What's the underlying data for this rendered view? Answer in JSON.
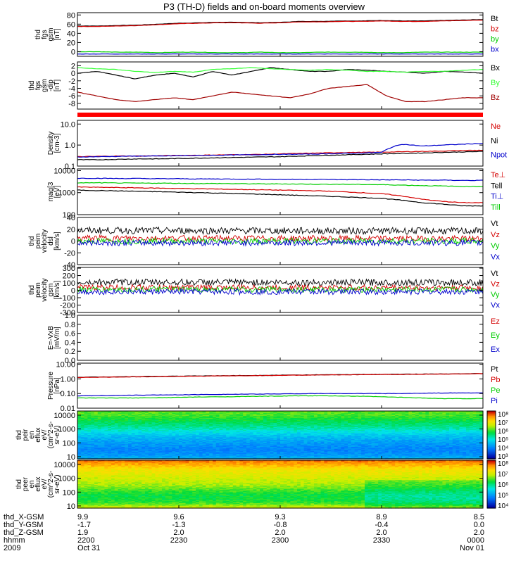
{
  "title": "P3 (TH-D) fields and on-board moments overview",
  "colors": {
    "black": "#000000",
    "red": "#d40000",
    "darkred": "#a00000",
    "green": "#00cc00",
    "blue": "#0000cc",
    "bright_green": "#33ff33"
  },
  "chart_data": [
    {
      "type": "line",
      "ylabel": [
        "thd",
        "fgs",
        "gsm",
        "[nT]"
      ],
      "ylim": [
        -10,
        85
      ],
      "yticks": [
        "80",
        "60",
        "40",
        "20",
        "0"
      ],
      "ytick_values": [
        80,
        60,
        40,
        20,
        0
      ],
      "series": [
        {
          "name": "Bt",
          "color": "#000000",
          "values": [
            56,
            56,
            57,
            58,
            60,
            62,
            63,
            64,
            64,
            63,
            64,
            66,
            66,
            67,
            67,
            68,
            67,
            67,
            68,
            69,
            70
          ]
        },
        {
          "name": "bz",
          "color": "#d40000",
          "values": [
            55,
            55,
            56,
            57,
            59,
            61,
            62,
            63,
            63,
            62,
            63,
            65,
            65,
            66,
            66,
            67,
            66,
            66,
            67,
            68,
            69
          ]
        },
        {
          "name": "by",
          "color": "#00cc00",
          "values": [
            0,
            0,
            -1,
            -1,
            -2,
            -1,
            -1,
            -2,
            -2,
            -1,
            -2,
            -2,
            -1,
            -1,
            -1,
            -2,
            -2,
            -1,
            -1,
            -1,
            -1
          ]
        },
        {
          "name": "bx",
          "color": "#0000cc",
          "values": [
            -5,
            -5,
            -5,
            -5,
            -5,
            -5,
            -5,
            -5,
            -5,
            -5,
            -5,
            -5,
            -5,
            -5,
            -5,
            -5,
            -5,
            -5,
            -5,
            -5,
            -5
          ]
        }
      ]
    },
    {
      "type": "line",
      "ylabel": [
        "thd",
        "fgs",
        "gsm",
        "-dip",
        "[nT]"
      ],
      "ylim": [
        -9.5,
        3
      ],
      "yticks": [
        "2",
        "0",
        "-2",
        "-4",
        "-6",
        "-8"
      ],
      "ytick_values": [
        2,
        0,
        -2,
        -4,
        -6,
        -8
      ],
      "series": [
        {
          "name": "Bx",
          "color": "#000000",
          "values": [
            0,
            0.5,
            -0.5,
            -1.5,
            -0.5,
            0,
            -1,
            0.5,
            -0.5,
            0.5,
            1.5,
            1,
            0.5,
            0.5,
            1,
            0.8,
            0.5,
            0.3,
            0,
            0.5,
            0.3,
            0
          ]
        },
        {
          "name": "By",
          "color": "#33ff33",
          "values": [
            1.5,
            1.2,
            1,
            0.5,
            0.2,
            0.5,
            0.3,
            1,
            1.2,
            1.5,
            1.2,
            1,
            0.8,
            1,
            0.8,
            0.5,
            0.5,
            0.3,
            0.5,
            0.5,
            0.8,
            1
          ]
        },
        {
          "name": "Bz",
          "color": "#a00000",
          "values": [
            -5,
            -6,
            -7,
            -7.5,
            -7,
            -6.5,
            -7,
            -6,
            -5,
            -5.5,
            -6,
            -6.5,
            -5.5,
            -4,
            -3.5,
            -3,
            -6,
            -7.5,
            -7.5,
            -7,
            -6.5,
            -6.5
          ]
        }
      ]
    },
    {
      "type": "line",
      "ylabel": [
        "Density",
        "[cm-3]"
      ],
      "yscale": "log",
      "ylim": [
        0.1,
        15
      ],
      "yticks": [
        "10.0",
        "1.0",
        "0.1"
      ],
      "ytick_values": [
        10,
        1,
        0.1
      ],
      "series": [
        {
          "name": "Ne",
          "color": "#d40000",
          "values": [
            0.28,
            0.29,
            0.3,
            0.3,
            0.31,
            0.32,
            0.33,
            0.34,
            0.35,
            0.36,
            0.38,
            0.4,
            0.42,
            0.44,
            0.45,
            0.46,
            0.48,
            0.5,
            0.52,
            0.55,
            0.57
          ]
        },
        {
          "name": "Ni",
          "color": "#000000",
          "values": [
            0.2,
            0.2,
            0.21,
            0.22,
            0.22,
            0.23,
            0.24,
            0.25,
            0.26,
            0.27,
            0.28,
            0.3,
            0.32,
            0.34,
            0.36,
            0.38,
            0.4,
            0.42,
            0.45,
            0.47,
            0.5
          ]
        },
        {
          "name": "Npot",
          "color": "#0000cc",
          "values": [
            0.27,
            0.28,
            0.29,
            0.3,
            0.3,
            0.31,
            0.32,
            0.33,
            0.34,
            0.35,
            0.36,
            0.37,
            0.38,
            0.4,
            0.42,
            0.45,
            1.1,
            0.9,
            1.0,
            1.1,
            1.2
          ]
        }
      ]
    },
    {
      "type": "line",
      "ylabel": [
        "mag[3",
        "[eV]"
      ],
      "yscale": "log",
      "ylim": [
        100,
        12000
      ],
      "yticks": [
        "10000",
        "1000",
        "100"
      ],
      "ytick_values": [
        10000,
        1000,
        100
      ],
      "series": [
        {
          "name": "Te⊥",
          "color": "#d40000",
          "values": [
            1800,
            1750,
            1700,
            1650,
            1600,
            1550,
            1500,
            1450,
            1400,
            1350,
            1300,
            1250,
            1200,
            1100,
            1000,
            900,
            700,
            500,
            400,
            350,
            350
          ]
        },
        {
          "name": "Tell",
          "color": "#000000",
          "values": [
            1300,
            1250,
            1200,
            1150,
            1100,
            1050,
            1000,
            950,
            900,
            850,
            800,
            750,
            700,
            650,
            600,
            550,
            450,
            350,
            300,
            250,
            250
          ]
        },
        {
          "name": "Ti⊥",
          "color": "#0000cc",
          "values": [
            4500,
            4500,
            4400,
            4400,
            4300,
            4300,
            4200,
            4200,
            4100,
            4100,
            4000,
            4000,
            4000,
            3900,
            3900,
            3800,
            3800,
            3700,
            3700,
            3600,
            3600
          ]
        },
        {
          "name": "Till",
          "color": "#00cc00",
          "values": [
            2800,
            2800,
            2750,
            2700,
            2700,
            2650,
            2600,
            2600,
            2550,
            2500,
            2500,
            2450,
            2400,
            2400,
            2350,
            2300,
            2200,
            2100,
            2000,
            1900,
            1900
          ]
        }
      ]
    },
    {
      "type": "line",
      "ylabel": [
        "thd",
        "peim",
        "velocity",
        "dsl",
        "[km/s]"
      ],
      "ylim": [
        -40,
        40
      ],
      "yticks": [
        "40",
        "20",
        "0",
        "-20",
        "-40"
      ],
      "ytick_values": [
        40,
        20,
        0,
        -20,
        -40
      ],
      "noise": true,
      "series": [
        {
          "name": "Vt",
          "color": "#000000",
          "values": [
            18,
            17
          ]
        },
        {
          "name": "Vz",
          "color": "#d40000",
          "values": [
            5,
            4
          ]
        },
        {
          "name": "Vy",
          "color": "#00cc00",
          "values": [
            0,
            0
          ]
        },
        {
          "name": "Vx",
          "color": "#0000cc",
          "values": [
            -3,
            -3
          ]
        }
      ]
    },
    {
      "type": "line",
      "ylabel": [
        "thd",
        "peim",
        "velocity",
        "gsm",
        "[km/s]"
      ],
      "ylim": [
        -300,
        310
      ],
      "yticks": [
        "300",
        "200",
        "100",
        "0",
        "-100",
        "-200",
        "-300"
      ],
      "ytick_values": [
        300,
        200,
        100,
        0,
        -100,
        -200,
        -300
      ],
      "noise": true,
      "series": [
        {
          "name": "Vt",
          "color": "#000000",
          "values": [
            110,
            105
          ]
        },
        {
          "name": "Vz",
          "color": "#d40000",
          "values": [
            40,
            35
          ]
        },
        {
          "name": "Vy",
          "color": "#00cc00",
          "values": [
            10,
            10
          ]
        },
        {
          "name": "Vx",
          "color": "#0000cc",
          "values": [
            -20,
            -20
          ]
        }
      ]
    },
    {
      "type": "line",
      "ylabel": [
        "E=-VxB",
        "[mV/m]"
      ],
      "ylim": [
        0,
        1.0
      ],
      "yticks": [
        "1.0",
        "0.8",
        "0.6",
        "0.4",
        "0.2",
        "0.0"
      ],
      "ytick_values": [
        1.0,
        0.8,
        0.6,
        0.4,
        0.2,
        0.0
      ],
      "series": [
        {
          "name": "Ez",
          "color": "#d40000",
          "values": []
        },
        {
          "name": "Ey",
          "color": "#00cc00",
          "values": []
        },
        {
          "name": "Ex",
          "color": "#0000cc",
          "values": []
        }
      ]
    },
    {
      "type": "line",
      "ylabel": [
        "Pressure",
        "[nPa]"
      ],
      "yscale": "log",
      "ylim": [
        0.01,
        12
      ],
      "yticks": [
        "10.00",
        "1.00",
        "0.10",
        "0.01"
      ],
      "ytick_values": [
        10,
        1,
        0.1,
        0.01
      ],
      "series": [
        {
          "name": "Pt",
          "color": "#000000",
          "values": [
            1.3,
            1.35,
            1.4,
            1.45,
            1.5,
            1.55,
            1.6,
            1.65,
            1.7,
            1.75,
            1.8,
            1.85,
            1.9,
            1.95,
            2.0,
            2.05,
            2.1,
            2.15,
            2.2,
            2.25,
            2.3
          ]
        },
        {
          "name": "Pb",
          "color": "#d40000",
          "values": [
            1.25,
            1.3,
            1.35,
            1.4,
            1.45,
            1.5,
            1.55,
            1.6,
            1.65,
            1.7,
            1.75,
            1.8,
            1.85,
            1.9,
            1.95,
            2.0,
            2.05,
            2.1,
            2.15,
            2.2,
            2.25
          ]
        },
        {
          "name": "Pe",
          "color": "#00cc00",
          "values": [
            0.05,
            0.05,
            0.05,
            0.05,
            0.052,
            0.055,
            0.058,
            0.06,
            0.062,
            0.065,
            0.067,
            0.07,
            0.07,
            0.068,
            0.065,
            0.06,
            0.055,
            0.05,
            0.045,
            0.045,
            0.045
          ]
        },
        {
          "name": "Pi",
          "color": "#0000cc",
          "values": [
            0.07,
            0.072,
            0.075,
            0.078,
            0.08,
            0.082,
            0.085,
            0.088,
            0.09,
            0.092,
            0.095,
            0.098,
            0.1,
            0.1,
            0.1,
            0.1,
            0.1,
            0.105,
            0.11,
            0.11,
            0.11
          ]
        }
      ]
    },
    {
      "type": "heatmap",
      "ylabel": [
        "thd",
        "peir",
        "en",
        "eflux",
        "eV/",
        "(cm^2-s-",
        "sr-eV)"
      ],
      "yscale": "log",
      "ylim": [
        7,
        20000
      ],
      "yticks": [
        "10000",
        "1000",
        "100",
        "10"
      ],
      "ytick_values": [
        10000,
        1000,
        100,
        10
      ],
      "colorbar_ticks": [
        "10⁸",
        "10⁷",
        "10⁶",
        "10⁵",
        "10⁴",
        "10³"
      ],
      "profile": [
        0.62,
        0.6,
        0.55,
        0.5,
        0.45,
        0.38,
        0.32,
        0.28,
        0.25,
        0.22,
        0.25,
        0.3
      ]
    },
    {
      "type": "heatmap",
      "ylabel": [
        "thd",
        "peer",
        "en",
        "eflux",
        "eV/",
        "(cm^2-s-",
        "sr-eV)"
      ],
      "yscale": "log",
      "ylim": [
        7,
        20000
      ],
      "yticks": [
        "10000",
        "1000",
        "100",
        "10"
      ],
      "ytick_values": [
        10000,
        1000,
        100,
        10
      ],
      "colorbar_ticks": [
        "10⁸",
        "10⁷",
        "10⁶",
        "10⁵",
        "10⁴"
      ],
      "profile": [
        0.92,
        0.85,
        0.78,
        0.75,
        0.72,
        0.7,
        0.66,
        0.6,
        0.55,
        0.55,
        0.6,
        0.72
      ]
    }
  ],
  "xaxis": {
    "rows": [
      {
        "label": "thd_X-GSM",
        "values": [
          "9.9",
          "9.6",
          "9.3",
          "8.9",
          "8.5"
        ]
      },
      {
        "label": "thd_Y-GSM",
        "values": [
          "-1.7",
          "-1.3",
          "-0.8",
          "-0.4",
          "0.0"
        ]
      },
      {
        "label": "thd_Z-GSM",
        "values": [
          "1.9",
          "2.0",
          "2.0",
          "2.0",
          "2.0"
        ]
      },
      {
        "label": "hhmm",
        "values": [
          "2200",
          "2230",
          "2300",
          "2330",
          "0000"
        ]
      },
      {
        "label": "2009",
        "values": [
          "Oct 31",
          "",
          "",
          "",
          "Nov 01"
        ]
      }
    ]
  }
}
